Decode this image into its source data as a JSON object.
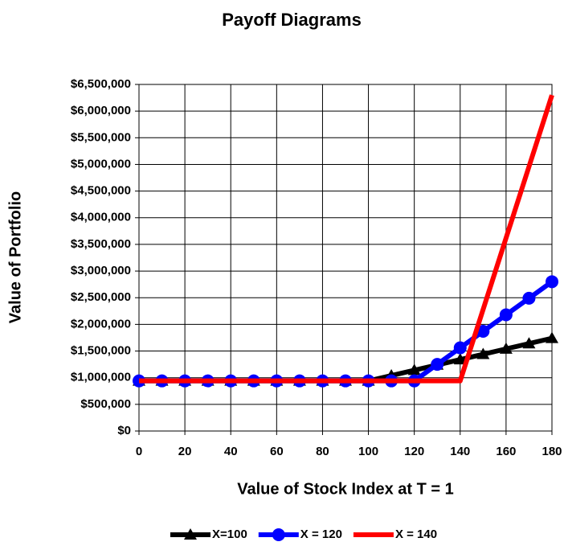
{
  "chart_data": {
    "type": "line",
    "title": "Payoff Diagrams",
    "x_label": "Value of Stock Index at T = 1",
    "y_label": "Value of Portfolio",
    "x": [
      0,
      10,
      20,
      30,
      40,
      50,
      60,
      70,
      80,
      90,
      100,
      110,
      120,
      130,
      140,
      150,
      160,
      170,
      180
    ],
    "series": [
      {
        "name": "X=100",
        "color": "#000000",
        "marker": "triangle",
        "values": [
          940000,
          940000,
          940000,
          940000,
          940000,
          940000,
          940000,
          940000,
          940000,
          940000,
          940000,
          1040000,
          1140000,
          1240000,
          1340000,
          1440000,
          1540000,
          1640000,
          1740000
        ]
      },
      {
        "name": "X = 120",
        "color": "#0000ff",
        "marker": "circle",
        "values": [
          940000,
          940000,
          940000,
          940000,
          940000,
          940000,
          940000,
          940000,
          940000,
          940000,
          940000,
          940000,
          940000,
          1250000,
          1560000,
          1870000,
          2180000,
          2490000,
          2800000
        ]
      },
      {
        "name": "X = 140",
        "color": "#ff0000",
        "marker": "none",
        "values": [
          940000,
          940000,
          940000,
          940000,
          940000,
          940000,
          940000,
          940000,
          940000,
          940000,
          940000,
          940000,
          940000,
          940000,
          940000,
          2280000,
          3620000,
          4960000,
          6300000
        ]
      }
    ],
    "xlim": [
      0,
      180
    ],
    "xticks": [
      0,
      20,
      40,
      60,
      80,
      100,
      120,
      140,
      160,
      180
    ],
    "ylim": [
      0,
      6500000
    ],
    "yticks": [
      {
        "value": 0,
        "label": "$0"
      },
      {
        "value": 500000,
        "label": "$500,000"
      },
      {
        "value": 1000000,
        "label": "$1,000,000"
      },
      {
        "value": 1500000,
        "label": "$1,500,000"
      },
      {
        "value": 2000000,
        "label": "$2,000,000"
      },
      {
        "value": 2500000,
        "label": "$2,500,000"
      },
      {
        "value": 3000000,
        "label": "$3,000,000"
      },
      {
        "value": 3500000,
        "label": "$3,500,000"
      },
      {
        "value": 4000000,
        "label": "$4,000,000"
      },
      {
        "value": 4500000,
        "label": "$4,500,000"
      },
      {
        "value": 5000000,
        "label": "$5,000,000"
      },
      {
        "value": 5500000,
        "label": "$5,500,000"
      },
      {
        "value": 6000000,
        "label": "$6,000,000"
      },
      {
        "value": 6500000,
        "label": "$6,500,000"
      }
    ],
    "grid": true,
    "legend": "bottom"
  }
}
